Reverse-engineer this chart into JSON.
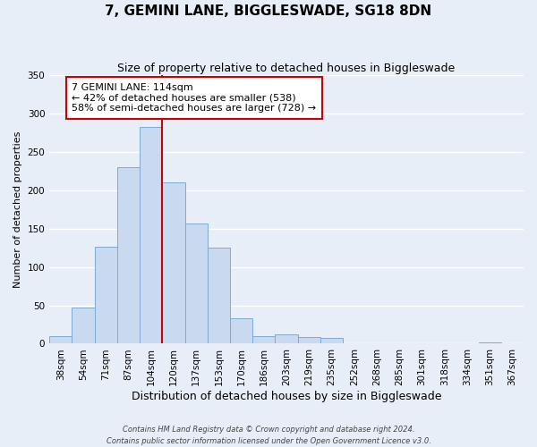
{
  "title": "7, GEMINI LANE, BIGGLESWADE, SG18 8DN",
  "subtitle": "Size of property relative to detached houses in Biggleswade",
  "xlabel": "Distribution of detached houses by size in Biggleswade",
  "ylabel": "Number of detached properties",
  "bin_labels": [
    "38sqm",
    "54sqm",
    "71sqm",
    "87sqm",
    "104sqm",
    "120sqm",
    "137sqm",
    "153sqm",
    "170sqm",
    "186sqm",
    "203sqm",
    "219sqm",
    "235sqm",
    "252sqm",
    "268sqm",
    "285sqm",
    "301sqm",
    "318sqm",
    "334sqm",
    "351sqm",
    "367sqm"
  ],
  "bar_heights": [
    10,
    47,
    126,
    230,
    283,
    210,
    157,
    125,
    33,
    10,
    12,
    9,
    7,
    0,
    0,
    0,
    0,
    0,
    0,
    2,
    0
  ],
  "bar_color": "#c9d9f0",
  "bar_edge_color": "#7eaad4",
  "vline_x_idx": 5,
  "vline_color": "#cc0000",
  "ylim": [
    0,
    350
  ],
  "yticks": [
    0,
    50,
    100,
    150,
    200,
    250,
    300,
    350
  ],
  "annotation_text": "7 GEMINI LANE: 114sqm\n← 42% of detached houses are smaller (538)\n58% of semi-detached houses are larger (728) →",
  "annotation_box_color": "#ffffff",
  "annotation_box_edge": "#cc0000",
  "footer_line1": "Contains HM Land Registry data © Crown copyright and database right 2024.",
  "footer_line2": "Contains public sector information licensed under the Open Government Licence v3.0.",
  "background_color": "#e8eef8",
  "grid_color": "#ffffff",
  "title_fontsize": 11,
  "subtitle_fontsize": 9,
  "xlabel_fontsize": 9,
  "ylabel_fontsize": 8,
  "tick_fontsize": 7.5,
  "annotation_fontsize": 8
}
